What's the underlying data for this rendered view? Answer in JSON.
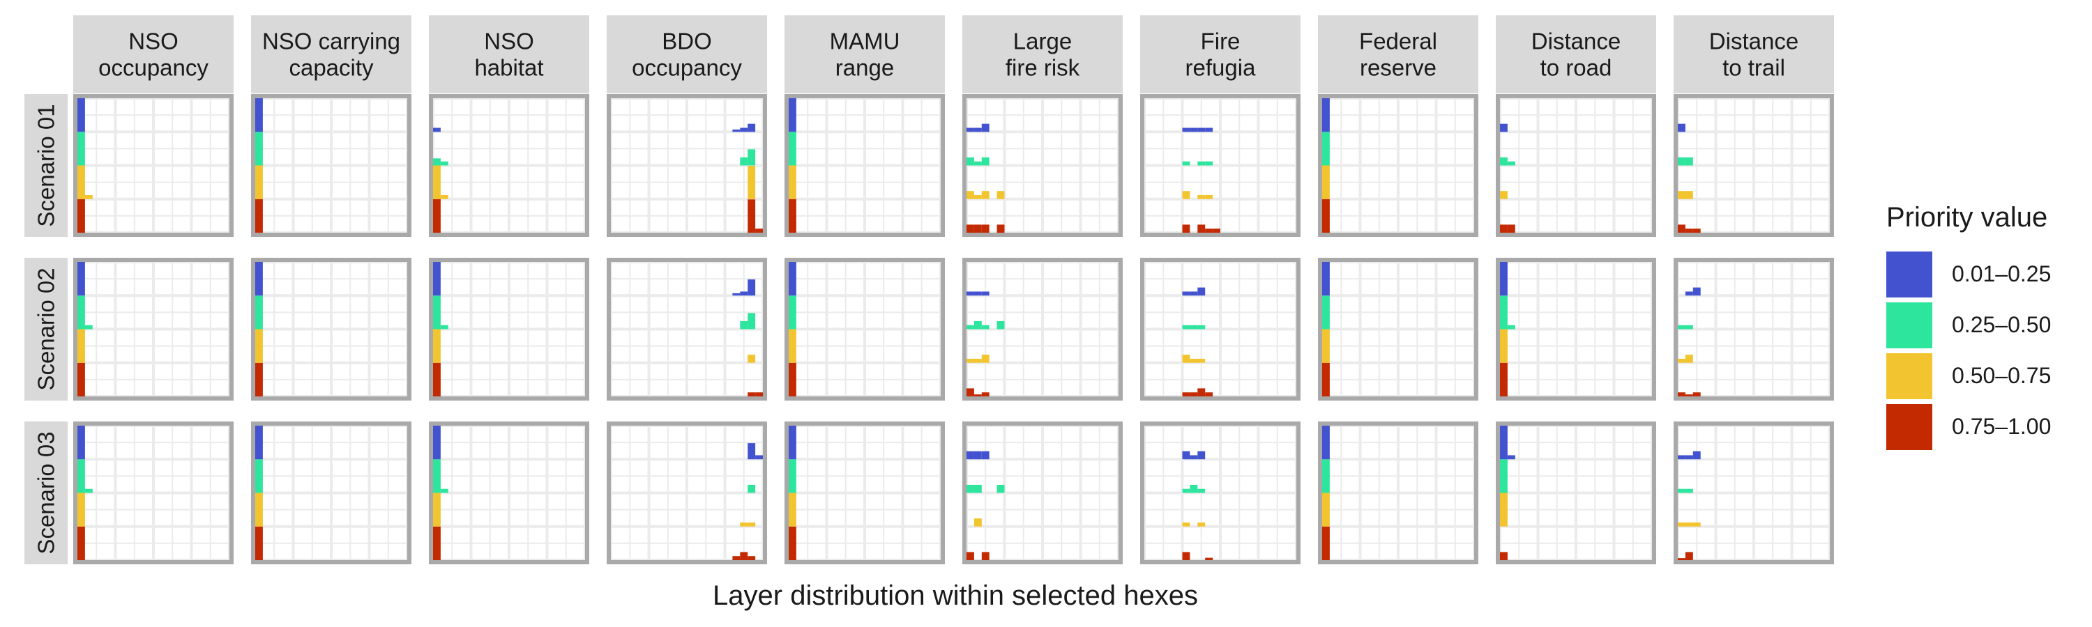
{
  "chart_data": {
    "type": "bar",
    "stacked": true,
    "xlabel": "Layer distribution within selected hexes",
    "legend": {
      "title": "Priority value",
      "placement": "right",
      "entries": [
        {
          "label": "0.01–0.25",
          "color": "#4353CF"
        },
        {
          "label": "0.25–0.50",
          "color": "#2EE59E"
        },
        {
          "label": "0.50–0.75",
          "color": "#F2C530"
        },
        {
          "label": "0.75–1.00",
          "color": "#C42A02"
        }
      ]
    },
    "columns": [
      "NSO\noccupancy",
      "NSO carrying\ncapacity",
      "NSO\nhabitat",
      "BDO\noccupancy",
      "MAMU\nrange",
      "Large\nfire risk",
      "Fire\nrefugia",
      "Federal\nreserve",
      "Distance\nto road",
      "Distance\nto trail"
    ],
    "rows": [
      "Scenario 01",
      "Scenario 02",
      "Scenario 03"
    ],
    "x_range": [
      0,
      1
    ],
    "y_range": [
      0,
      1
    ],
    "grid": true,
    "bin_width": 0.05,
    "panels": [
      [
        {
          "bars": [
            {
              "x": 0.025,
              "stack": [
                1.0,
                1.0,
                1.0,
                1.0
              ]
            },
            {
              "x": 0.075,
              "stack": [
                0,
                0,
                0.12,
                0
              ]
            }
          ]
        },
        {
          "bars": [
            {
              "x": 0.025,
              "stack": [
                1.0,
                1.0,
                1.0,
                1.0
              ]
            }
          ]
        },
        {
          "bars": [
            {
              "x": 0.025,
              "stack": [
                0.12,
                0.21,
                1.0,
                1.0
              ]
            },
            {
              "x": 0.075,
              "stack": [
                0,
                0.12,
                0.12,
                0
              ]
            }
          ]
        },
        {
          "bars": [
            {
              "x": 0.825,
              "stack": [
                0.07,
                0,
                0,
                0
              ]
            },
            {
              "x": 0.875,
              "stack": [
                0.12,
                0.24,
                0,
                0
              ]
            },
            {
              "x": 0.925,
              "stack": [
                0.24,
                0.48,
                0.99,
                0.99
              ]
            },
            {
              "x": 0.975,
              "stack": [
                0,
                0,
                0,
                0.12
              ]
            }
          ]
        },
        {
          "bars": [
            {
              "x": 0.025,
              "stack": [
                1.0,
                1.0,
                1.0,
                1.0
              ]
            }
          ]
        },
        {
          "bars": [
            {
              "x": 0.025,
              "stack": [
                0.12,
                0.24,
                0.24,
                0.24
              ]
            },
            {
              "x": 0.075,
              "stack": [
                0.12,
                0.12,
                0.12,
                0.24
              ]
            },
            {
              "x": 0.125,
              "stack": [
                0.24,
                0.24,
                0.24,
                0.24
              ]
            },
            {
              "x": 0.175,
              "stack": [
                0,
                0,
                0,
                0
              ]
            },
            {
              "x": 0.225,
              "stack": [
                0,
                0,
                0.24,
                0.24
              ]
            }
          ]
        },
        {
          "bars": [
            {
              "x": 0.275,
              "stack": [
                0.12,
                0.12,
                0.24,
                0.24
              ]
            },
            {
              "x": 0.325,
              "stack": [
                0.12,
                0,
                0,
                0
              ]
            },
            {
              "x": 0.375,
              "stack": [
                0.12,
                0.12,
                0.12,
                0.24
              ]
            },
            {
              "x": 0.425,
              "stack": [
                0.12,
                0.12,
                0.12,
                0.12
              ]
            },
            {
              "x": 0.475,
              "stack": [
                0,
                0,
                0,
                0.12
              ]
            }
          ]
        },
        {
          "bars": [
            {
              "x": 0.025,
              "stack": [
                1.0,
                1.0,
                1.0,
                1.0
              ]
            }
          ]
        },
        {
          "bars": [
            {
              "x": 0.025,
              "stack": [
                0.24,
                0.24,
                0.24,
                0.24
              ]
            },
            {
              "x": 0.075,
              "stack": [
                0,
                0.12,
                0,
                0.24
              ]
            },
            {
              "x": 0.125,
              "stack": [
                0,
                0,
                0,
                0
              ]
            }
          ]
        },
        {
          "bars": [
            {
              "x": 0.025,
              "stack": [
                0.24,
                0.24,
                0.24,
                0.24
              ]
            },
            {
              "x": 0.075,
              "stack": [
                0,
                0.24,
                0.24,
                0.12
              ]
            },
            {
              "x": 0.125,
              "stack": [
                0,
                0,
                0,
                0.12
              ]
            }
          ]
        }
      ],
      [
        {
          "bars": [
            {
              "x": 0.025,
              "stack": [
                1.0,
                1.0,
                1.0,
                1.0
              ]
            },
            {
              "x": 0.075,
              "stack": [
                0,
                0.12,
                0,
                0
              ]
            }
          ]
        },
        {
          "bars": [
            {
              "x": 0.025,
              "stack": [
                1.0,
                1.0,
                1.0,
                1.0
              ]
            }
          ]
        },
        {
          "bars": [
            {
              "x": 0.025,
              "stack": [
                1.0,
                1.0,
                1.0,
                1.0
              ]
            },
            {
              "x": 0.075,
              "stack": [
                0,
                0.12,
                0,
                0
              ]
            }
          ]
        },
        {
          "bars": [
            {
              "x": 0.825,
              "stack": [
                0.07,
                0,
                0,
                0
              ]
            },
            {
              "x": 0.875,
              "stack": [
                0.12,
                0.24,
                0,
                0
              ]
            },
            {
              "x": 0.925,
              "stack": [
                0.48,
                0.48,
                0.24,
                0.12
              ]
            },
            {
              "x": 0.975,
              "stack": [
                0,
                0,
                0,
                0.12
              ]
            }
          ]
        },
        {
          "bars": [
            {
              "x": 0.025,
              "stack": [
                1.0,
                1.0,
                1.0,
                1.0
              ]
            }
          ]
        },
        {
          "bars": [
            {
              "x": 0.025,
              "stack": [
                0.12,
                0.12,
                0.12,
                0.24
              ]
            },
            {
              "x": 0.075,
              "stack": [
                0.12,
                0.24,
                0.12,
                0.06
              ]
            },
            {
              "x": 0.125,
              "stack": [
                0.12,
                0.12,
                0.24,
                0.12
              ]
            },
            {
              "x": 0.225,
              "stack": [
                0,
                0.24,
                0,
                0
              ]
            }
          ]
        },
        {
          "bars": [
            {
              "x": 0.275,
              "stack": [
                0.12,
                0.12,
                0.24,
                0.12
              ]
            },
            {
              "x": 0.325,
              "stack": [
                0.12,
                0.12,
                0.12,
                0.12
              ]
            },
            {
              "x": 0.375,
              "stack": [
                0.24,
                0.12,
                0.12,
                0.24
              ]
            },
            {
              "x": 0.425,
              "stack": [
                0,
                0,
                0,
                0.12
              ]
            }
          ]
        },
        {
          "bars": [
            {
              "x": 0.025,
              "stack": [
                1.0,
                1.0,
                1.0,
                1.0
              ]
            }
          ]
        },
        {
          "bars": [
            {
              "x": 0.025,
              "stack": [
                1.0,
                1.0,
                1.0,
                1.0
              ]
            },
            {
              "x": 0.075,
              "stack": [
                0,
                0.12,
                0,
                0
              ]
            }
          ]
        },
        {
          "bars": [
            {
              "x": 0.025,
              "stack": [
                0,
                0.12,
                0.12,
                0.12
              ]
            },
            {
              "x": 0.075,
              "stack": [
                0.12,
                0.12,
                0.24,
                0.06
              ]
            },
            {
              "x": 0.125,
              "stack": [
                0.24,
                0,
                0,
                0.12
              ]
            }
          ]
        }
      ],
      [
        {
          "bars": [
            {
              "x": 0.025,
              "stack": [
                1.0,
                1.0,
                1.0,
                1.0
              ]
            },
            {
              "x": 0.075,
              "stack": [
                0,
                0.12,
                0,
                0
              ]
            }
          ]
        },
        {
          "bars": [
            {
              "x": 0.025,
              "stack": [
                1.0,
                1.0,
                1.0,
                1.0
              ]
            }
          ]
        },
        {
          "bars": [
            {
              "x": 0.025,
              "stack": [
                1.0,
                1.0,
                1.0,
                1.0
              ]
            },
            {
              "x": 0.075,
              "stack": [
                0,
                0.12,
                0,
                0
              ]
            }
          ]
        },
        {
          "bars": [
            {
              "x": 0.825,
              "stack": [
                0,
                0,
                0,
                0.12
              ]
            },
            {
              "x": 0.875,
              "stack": [
                0,
                0,
                0.12,
                0.24
              ]
            },
            {
              "x": 0.925,
              "stack": [
                0.48,
                0.24,
                0.12,
                0.12
              ]
            },
            {
              "x": 0.975,
              "stack": [
                0.12,
                0,
                0,
                0
              ]
            }
          ]
        },
        {
          "bars": [
            {
              "x": 0.025,
              "stack": [
                1.0,
                1.0,
                1.0,
                1.0
              ]
            }
          ]
        },
        {
          "bars": [
            {
              "x": 0.025,
              "stack": [
                0.24,
                0.24,
                0,
                0.24
              ]
            },
            {
              "x": 0.075,
              "stack": [
                0.24,
                0.24,
                0.24,
                0
              ]
            },
            {
              "x": 0.125,
              "stack": [
                0.24,
                0,
                0,
                0.24
              ]
            },
            {
              "x": 0.225,
              "stack": [
                0,
                0.24,
                0,
                0
              ]
            }
          ]
        },
        {
          "bars": [
            {
              "x": 0.275,
              "stack": [
                0.24,
                0.12,
                0.12,
                0.24
              ]
            },
            {
              "x": 0.325,
              "stack": [
                0.12,
                0.24,
                0,
                0
              ]
            },
            {
              "x": 0.375,
              "stack": [
                0.24,
                0.12,
                0.12,
                0
              ]
            },
            {
              "x": 0.425,
              "stack": [
                0,
                0,
                0,
                0.07
              ]
            }
          ]
        },
        {
          "bars": [
            {
              "x": 0.025,
              "stack": [
                1.0,
                1.0,
                1.0,
                1.0
              ]
            }
          ]
        },
        {
          "bars": [
            {
              "x": 0.025,
              "stack": [
                1.0,
                1.0,
                1.0,
                0.24
              ]
            },
            {
              "x": 0.075,
              "stack": [
                0.12,
                0,
                0,
                0
              ]
            }
          ]
        },
        {
          "bars": [
            {
              "x": 0.025,
              "stack": [
                0.12,
                0.12,
                0.12,
                0.06
              ]
            },
            {
              "x": 0.075,
              "stack": [
                0.12,
                0.12,
                0.12,
                0.24
              ]
            },
            {
              "x": 0.125,
              "stack": [
                0.24,
                0,
                0.12,
                0
              ]
            }
          ]
        }
      ]
    ]
  }
}
